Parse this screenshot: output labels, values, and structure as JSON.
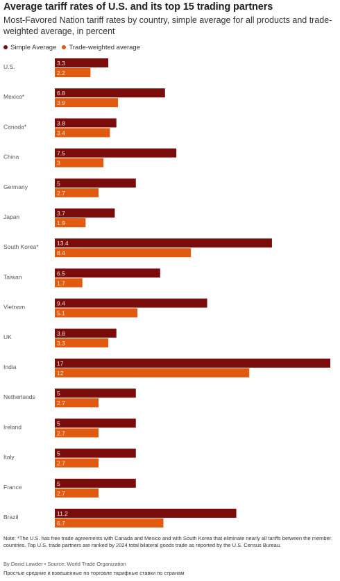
{
  "title": "Average tariff rates of U.S. and its top 15 trading partners",
  "subtitle": "Most-Favored Nation tariff rates by country, simple average for all products and trade-weighted average, in percent",
  "colors": {
    "simple": "#7a0c0c",
    "weighted": "#e05a0f",
    "label_text": "#f2e6e0",
    "category_text": "#555555"
  },
  "chart_data": {
    "type": "bar",
    "orientation": "horizontal",
    "categories": [
      "U.S.",
      "Mexico*",
      "Canada*",
      "China",
      "Germany",
      "Japan",
      "South Korea*",
      "Taiwan",
      "Vietnam",
      "UK",
      "India",
      "Netherlands",
      "Ireland",
      "Italy",
      "France",
      "Brazil"
    ],
    "series": [
      {
        "name": "Simple Average",
        "values": [
          3.3,
          6.8,
          3.8,
          7.5,
          5,
          3.7,
          13.4,
          6.5,
          9.4,
          3.8,
          17,
          5,
          5,
          5,
          5,
          11.2
        ]
      },
      {
        "name": "Trade-weighted average",
        "values": [
          2.2,
          3.9,
          3.4,
          3,
          2.7,
          1.9,
          8.4,
          1.7,
          5.1,
          3.3,
          12,
          2.7,
          2.7,
          2.7,
          2.7,
          6.7
        ]
      }
    ],
    "xlim": [
      0,
      17
    ],
    "grid": false,
    "legend_position": "top-left"
  },
  "note": "Note: *The U.S. has free trade agreements with Canada and Mexico and with South Korea that eliminate nearly all tariffs between the member countries. Top U.S. trade partners are ranked by 2024 total bilateral goods trade as reported by the U.S. Census Bureau.",
  "credit": "By David Lawder • Source: World Trade Organization",
  "caption": "Простые средние и взвешенные по торговле тарифные ставки по странам"
}
